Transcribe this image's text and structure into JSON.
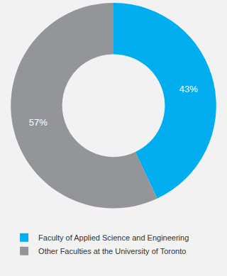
{
  "chart_data": {
    "type": "pie",
    "categories": [
      "Faculty of Applied Science and Engineering",
      "Other Faculties at the University of Toronto"
    ],
    "values": [
      43,
      57
    ],
    "value_labels": [
      "43%",
      "57%"
    ],
    "colors": [
      "#00aeef",
      "#939598"
    ],
    "data_labels": true,
    "legend": "bottom"
  }
}
